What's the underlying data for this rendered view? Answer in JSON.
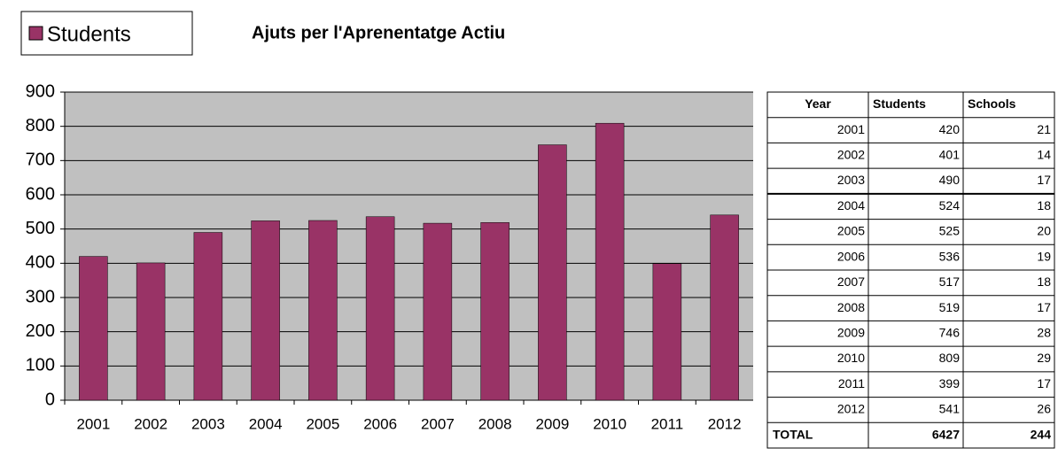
{
  "chart_data": {
    "type": "bar",
    "title": "Ajuts per l'Aprenentatge Actiu",
    "categories": [
      "2001",
      "2002",
      "2003",
      "2004",
      "2005",
      "2006",
      "2007",
      "2008",
      "2009",
      "2010",
      "2011",
      "2012"
    ],
    "series": [
      {
        "name": "Students",
        "color": "#993366",
        "values": [
          420,
          401,
          490,
          524,
          525,
          536,
          517,
          519,
          746,
          809,
          399,
          541
        ]
      }
    ],
    "ylim": [
      0,
      900
    ],
    "yticks": [
      0,
      100,
      200,
      300,
      400,
      500,
      600,
      700,
      800,
      900
    ],
    "grid": true,
    "legend": "top-left"
  },
  "table": {
    "columns": [
      "Year",
      "Students",
      "Schools"
    ],
    "rows": [
      [
        2001,
        420,
        21
      ],
      [
        2002,
        401,
        14
      ],
      [
        2003,
        490,
        17
      ],
      [
        2004,
        524,
        18
      ],
      [
        2005,
        525,
        20
      ],
      [
        2006,
        536,
        19
      ],
      [
        2007,
        517,
        18
      ],
      [
        2008,
        519,
        17
      ],
      [
        2009,
        746,
        28
      ],
      [
        2010,
        809,
        29
      ],
      [
        2011,
        399,
        17
      ],
      [
        2012,
        541,
        26
      ]
    ],
    "total": [
      "TOTAL",
      6427,
      244
    ]
  }
}
